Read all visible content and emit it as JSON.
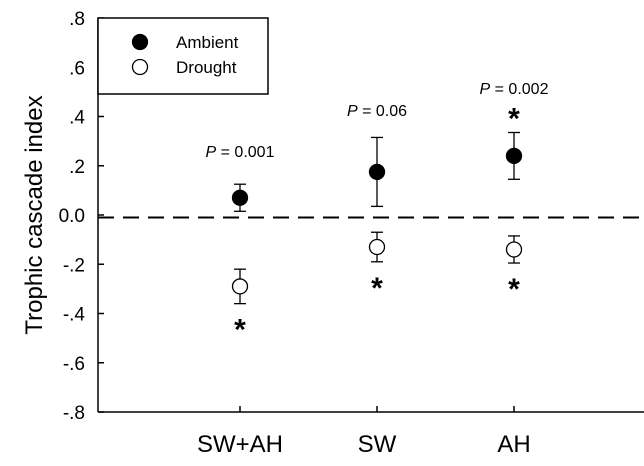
{
  "chart_data": {
    "type": "scatter",
    "ylabel": "Trophic cascade index",
    "ylim": [
      -0.8,
      0.8
    ],
    "yticks": [
      ".8",
      ".6",
      ".4",
      ".2",
      "0.0",
      "-.2",
      "-.4",
      "-.6",
      "-.8"
    ],
    "categories": [
      "SW+AH",
      "SW",
      "AH"
    ],
    "reference_line": {
      "y": -0.01,
      "style": "dashed"
    },
    "legend": {
      "placement": "top-left"
    },
    "series": [
      {
        "name": "Ambient",
        "marker": "filled-circle",
        "values": [
          0.07,
          0.175,
          0.24
        ],
        "errors": [
          0.055,
          0.14,
          0.095
        ]
      },
      {
        "name": "Drought",
        "marker": "open-circle",
        "values": [
          -0.29,
          -0.13,
          -0.14
        ],
        "errors": [
          0.07,
          0.06,
          0.055
        ]
      }
    ],
    "annotations": {
      "p_prefix": "P",
      "p_values": [
        " = 0.001",
        " = 0.06",
        " = 0.002"
      ],
      "stars": [
        {
          "category": "SW+AH",
          "series": "Drought",
          "text": "*"
        },
        {
          "category": "SW",
          "series": "Drought",
          "text": "*"
        },
        {
          "category": "AH",
          "series": "Ambient",
          "text": "*"
        },
        {
          "category": "AH",
          "series": "Drought",
          "text": "*"
        }
      ]
    }
  }
}
